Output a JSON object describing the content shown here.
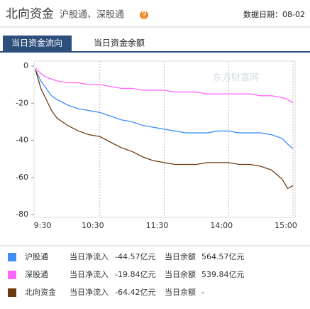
{
  "header": {
    "title": "北向资金",
    "subtitle": "沪股通、深股通",
    "date": "数据日期：08-02"
  },
  "tabs": [
    "当日资金流向",
    "当日资金余额"
  ],
  "watermark": "东方财富网",
  "chart_data": {
    "type": "line",
    "x": [
      0,
      5,
      10,
      15,
      20,
      30,
      40,
      50,
      60,
      70,
      80,
      90,
      100,
      110,
      120,
      130,
      140,
      150,
      160,
      170,
      180,
      190,
      200,
      210,
      220,
      230,
      235,
      240
    ],
    "xlim": [
      0,
      240
    ],
    "xticks": [
      {
        "value": 0,
        "label": "9:30"
      },
      {
        "value": 60,
        "label": "10:30"
      },
      {
        "value": 120,
        "label": "11:30"
      },
      {
        "value": 180,
        "label": "14:00"
      },
      {
        "value": 240,
        "label": "15:00"
      }
    ],
    "ylim": [
      -80,
      0
    ],
    "yticks": [
      0,
      -20,
      -40,
      -60,
      -80
    ],
    "grid": true,
    "series": [
      {
        "name": "沪股通",
        "color": "#3f8ef5",
        "values": [
          -2,
          -8,
          -12,
          -16,
          -18,
          -21,
          -23,
          -24,
          -25,
          -27,
          -29,
          -30,
          -32,
          -33,
          -34,
          -35,
          -36,
          -36,
          -36,
          -35,
          -35,
          -36,
          -36,
          -36,
          -37,
          -39,
          -42,
          -44.57
        ]
      },
      {
        "name": "深股通",
        "color": "#ff66ff",
        "values": [
          -1,
          -4,
          -6,
          -7,
          -8,
          -9,
          -9,
          -10,
          -10,
          -11,
          -12,
          -12,
          -13,
          -13,
          -13,
          -14,
          -14,
          -14,
          -15,
          -15,
          -15,
          -15,
          -15,
          -16,
          -16,
          -17,
          -18,
          -19.84
        ]
      },
      {
        "name": "北向资金",
        "color": "#6b3a10",
        "values": [
          -2,
          -12,
          -18,
          -24,
          -28,
          -32,
          -35,
          -37,
          -38,
          -41,
          -44,
          -46,
          -49,
          -51,
          -52,
          -53,
          -53,
          -53,
          -52,
          -52,
          -52,
          -53,
          -53,
          -54,
          -56,
          -61,
          -66,
          -64.42
        ]
      }
    ]
  },
  "legend": [
    {
      "flow_label": "当日净流入",
      "flow": "-44.57亿元",
      "balance_label": "当日余额",
      "balance": "564.57亿元"
    },
    {
      "flow_label": "当日净流入",
      "flow": "-19.84亿元",
      "balance_label": "当日余额",
      "balance": "539.84亿元"
    },
    {
      "flow_label": "当日净流入",
      "flow": "-64.42亿元",
      "balance_label": "当日余额",
      "balance": "-"
    }
  ]
}
